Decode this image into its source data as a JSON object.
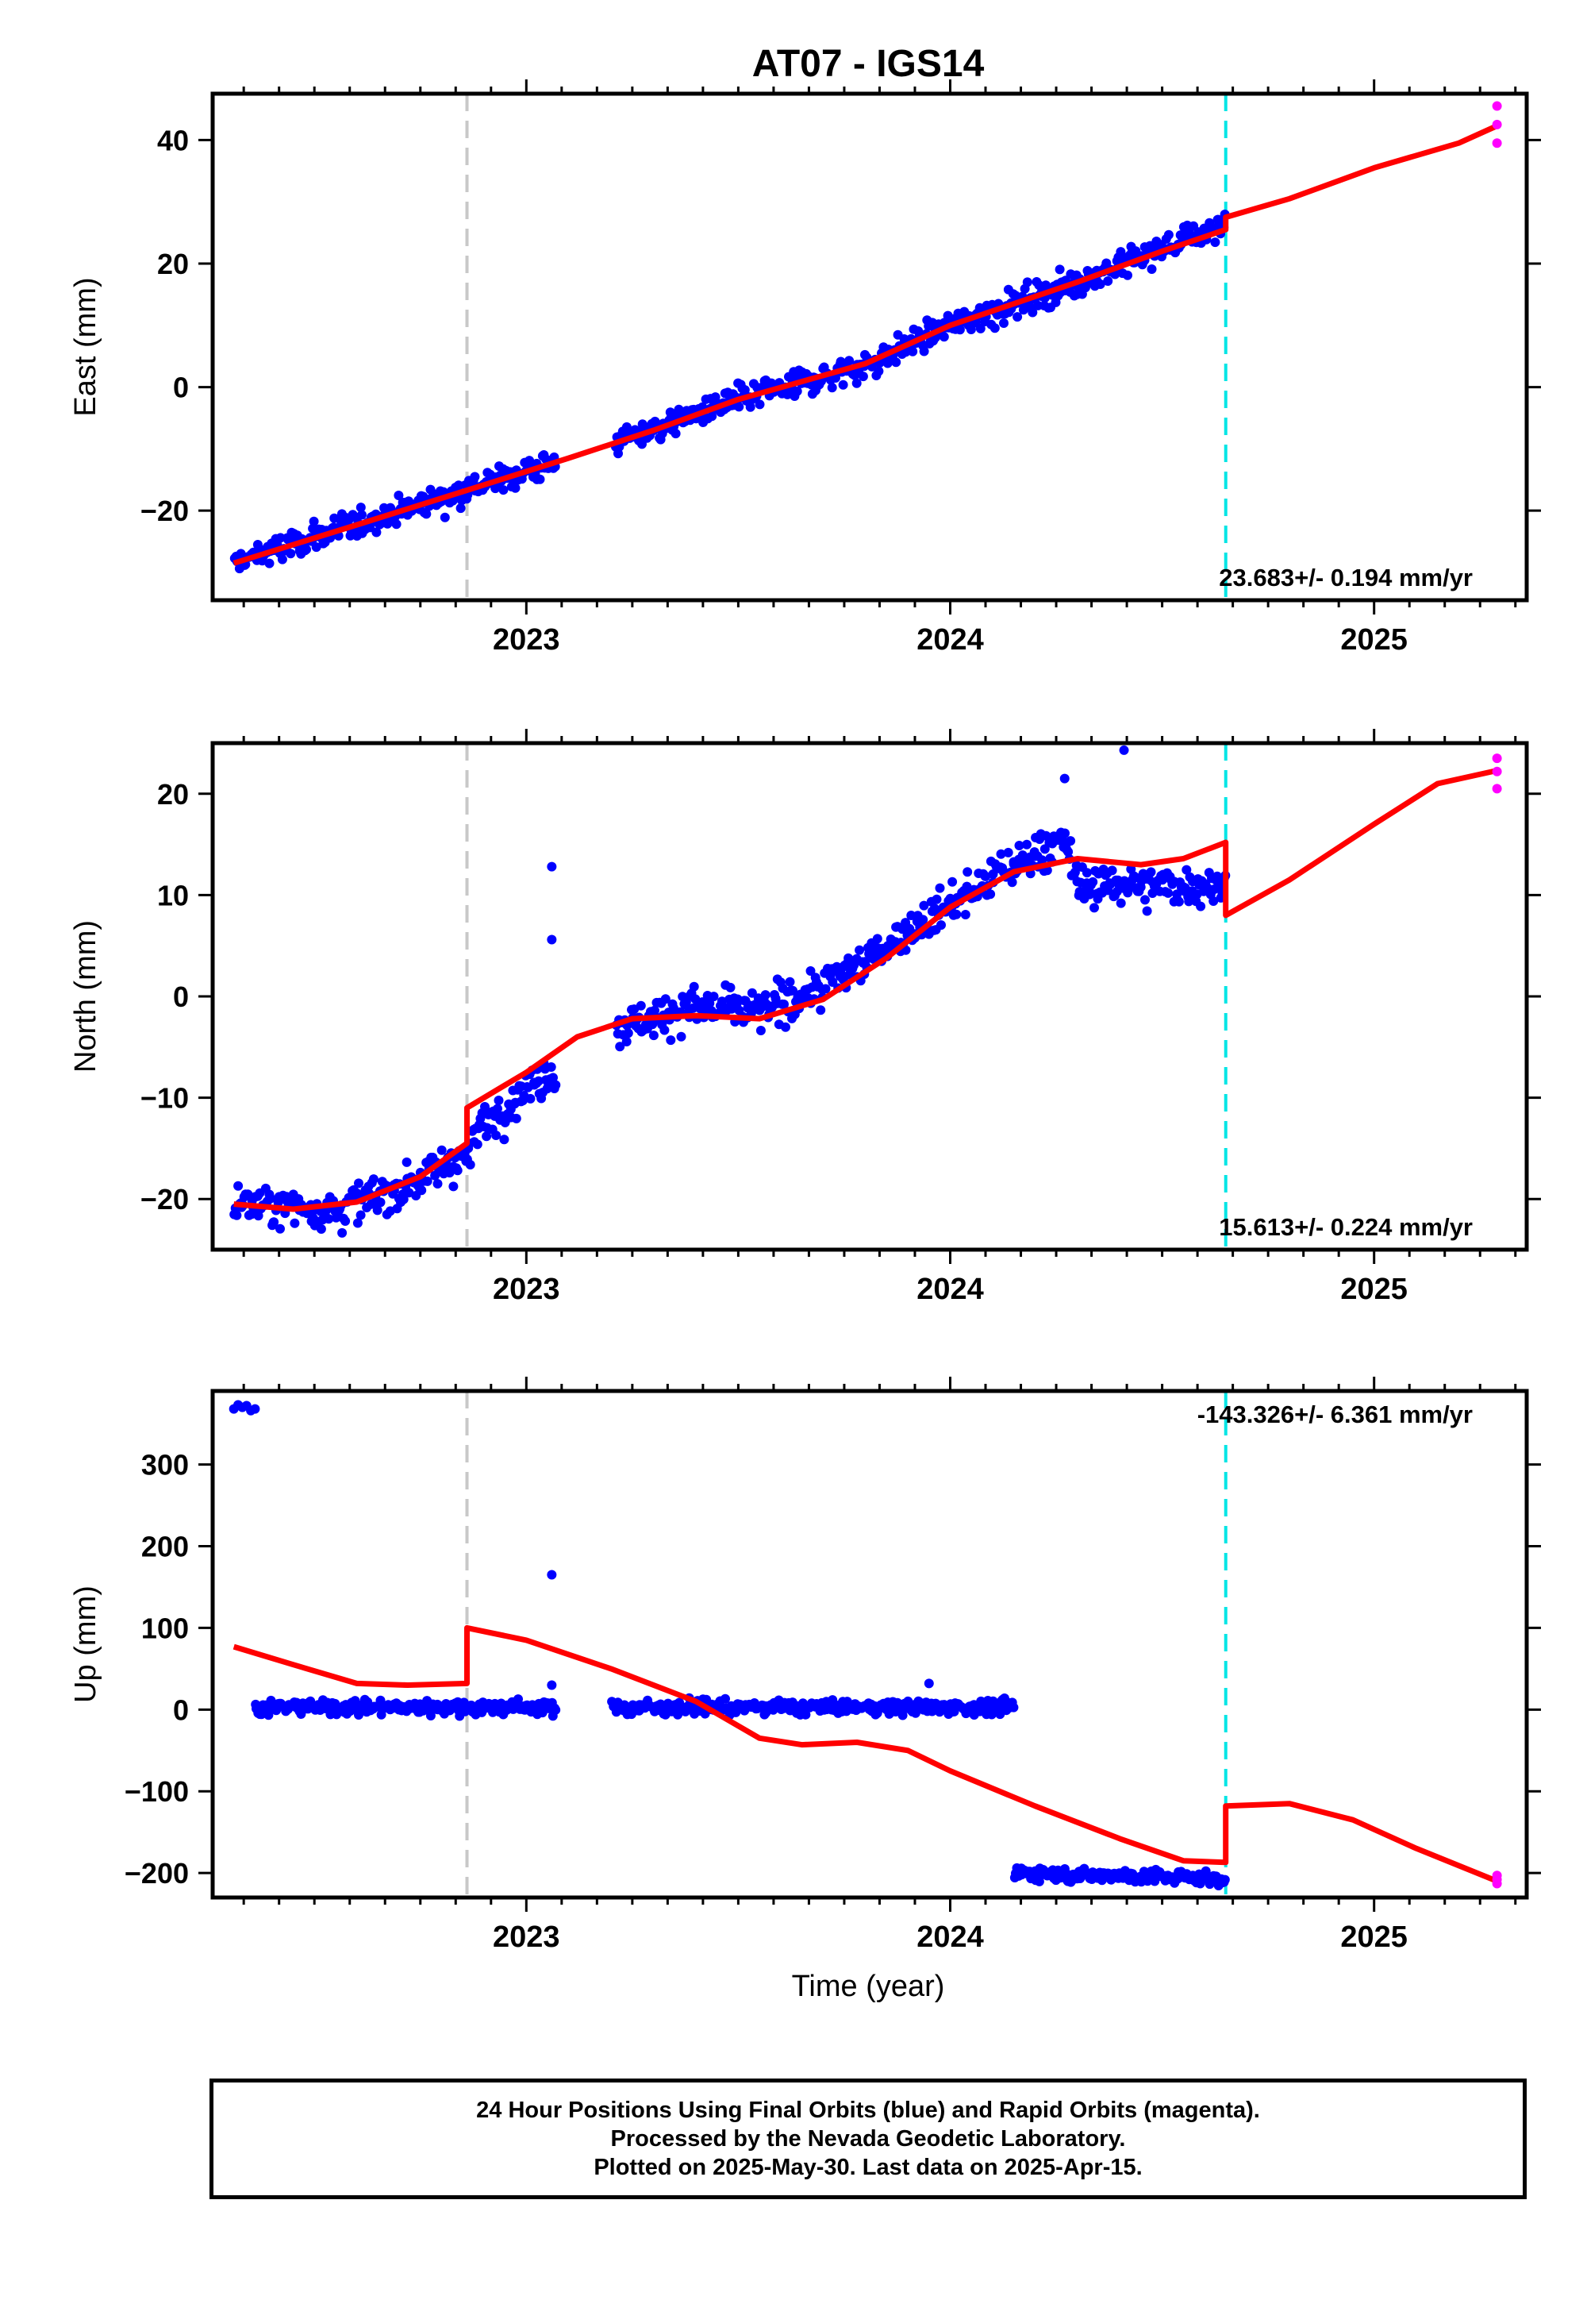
{
  "title": "AT07 - IGS14",
  "xlabel": "Time (year)",
  "caption": {
    "line1": "24 Hour Positions Using Final Orbits (blue) and Rapid Orbits (magenta).",
    "line2": "Processed by the Nevada Geodetic Laboratory.",
    "line3": "Plotted on 2025-May-30. Last data on 2025-Apr-15."
  },
  "colors": {
    "final_orbits": "#0000ff",
    "rapid_orbits": "#ff00ff",
    "model": "#ff0000",
    "event_gray": "#c8c8c8",
    "event_cyan": "#00e5e5"
  },
  "chart_data": [
    {
      "type": "scatter",
      "panel": "east",
      "ylabel": "East (mm)",
      "xlim": [
        2022.26,
        2025.36
      ],
      "ylim": [
        -34.5,
        47.5
      ],
      "yticks": [
        -20,
        0,
        20,
        40
      ],
      "xticks": [
        2023,
        2024,
        2025
      ],
      "rate_label": "23.683+/- 0.194 mm/yr",
      "rate_position": "bottom-right",
      "events": [
        {
          "x": 2022.86,
          "color": "gray"
        },
        {
          "x": 2024.65,
          "color": "cyan"
        }
      ],
      "final_segments": [
        [
          2022.31,
          2023.07
        ],
        [
          2023.21,
          2024.65
        ]
      ],
      "final_trend": [
        [
          2022.31,
          -28.5
        ],
        [
          2022.86,
          -16.5
        ],
        [
          2023.1,
          -11.5
        ],
        [
          2023.5,
          -2.0
        ],
        [
          2023.8,
          3.5
        ],
        [
          2024.0,
          10.0
        ],
        [
          2024.3,
          17.0
        ],
        [
          2024.65,
          26.5
        ]
      ],
      "final_scatter_mm": 1.6,
      "rapid_points": [
        [
          2025.29,
          45.5
        ],
        [
          2025.29,
          42.5
        ],
        [
          2025.29,
          39.5
        ]
      ],
      "model_line": [
        [
          2022.31,
          -28.5
        ],
        [
          2022.6,
          -22.3
        ],
        [
          2022.86,
          -16.7
        ],
        [
          2023.1,
          -11.5
        ],
        [
          2023.3,
          -7.0
        ],
        [
          2023.5,
          -2.0
        ],
        [
          2023.8,
          3.8
        ],
        [
          2024.0,
          10.0
        ],
        [
          2024.3,
          17.0
        ],
        [
          2024.5,
          22.0
        ],
        [
          2024.65,
          25.5
        ],
        [
          2024.65,
          27.5
        ],
        [
          2024.8,
          30.5
        ],
        [
          2025.0,
          35.5
        ],
        [
          2025.2,
          39.5
        ],
        [
          2025.29,
          42.3
        ]
      ]
    },
    {
      "type": "scatter",
      "panel": "north",
      "ylabel": "North (mm)",
      "xlim": [
        2022.26,
        2025.36
      ],
      "ylim": [
        -25,
        25
      ],
      "yticks": [
        -20,
        -10,
        0,
        10,
        20
      ],
      "xticks": [
        2023,
        2024,
        2025
      ],
      "rate_label": "15.613+/- 0.224 mm/yr",
      "rate_position": "bottom-right",
      "events": [
        {
          "x": 2022.86,
          "color": "gray"
        },
        {
          "x": 2024.65,
          "color": "cyan"
        }
      ],
      "final_segments": [
        [
          2022.31,
          2023.07
        ],
        [
          2023.21,
          2024.65
        ]
      ],
      "final_trend": [
        [
          2022.31,
          -20.5
        ],
        [
          2022.55,
          -21.0
        ],
        [
          2022.7,
          -19.0
        ],
        [
          2022.86,
          -15.5
        ],
        [
          2022.9,
          -12.5
        ],
        [
          2023.07,
          -7.0
        ],
        [
          2023.21,
          -3.0
        ],
        [
          2023.4,
          -1.0
        ],
        [
          2023.55,
          -1.5
        ],
        [
          2023.7,
          1.0
        ],
        [
          2023.85,
          5.0
        ],
        [
          2024.0,
          9.0
        ],
        [
          2024.15,
          13.0
        ],
        [
          2024.27,
          15.5
        ],
        [
          2024.3,
          11.0
        ],
        [
          2024.65,
          11.0
        ]
      ],
      "final_scatter_mm": 1.4,
      "outliers": [
        [
          2023.06,
          12.8
        ],
        [
          2023.06,
          5.6
        ],
        [
          2024.41,
          24.3
        ],
        [
          2024.27,
          21.5
        ]
      ],
      "rapid_points": [
        [
          2025.29,
          23.5
        ],
        [
          2025.29,
          22.2
        ],
        [
          2025.29,
          20.5
        ]
      ],
      "model_line": [
        [
          2022.31,
          -20.5
        ],
        [
          2022.45,
          -21.0
        ],
        [
          2022.6,
          -20.3
        ],
        [
          2022.75,
          -17.8
        ],
        [
          2022.86,
          -14.5
        ],
        [
          2022.86,
          -11.0
        ],
        [
          2023.0,
          -7.5
        ],
        [
          2023.12,
          -4.0
        ],
        [
          2023.25,
          -2.2
        ],
        [
          2023.4,
          -1.9
        ],
        [
          2023.55,
          -2.2
        ],
        [
          2023.7,
          -0.3
        ],
        [
          2023.85,
          3.8
        ],
        [
          2024.0,
          8.8
        ],
        [
          2024.15,
          12.3
        ],
        [
          2024.3,
          13.6
        ],
        [
          2024.45,
          13.0
        ],
        [
          2024.55,
          13.6
        ],
        [
          2024.65,
          15.2
        ],
        [
          2024.65,
          8.0
        ],
        [
          2024.8,
          11.5
        ],
        [
          2025.0,
          17.0
        ],
        [
          2025.15,
          21.0
        ],
        [
          2025.29,
          22.3
        ]
      ]
    },
    {
      "type": "scatter",
      "panel": "up",
      "ylabel": "Up (mm)",
      "xlim": [
        2022.26,
        2025.36
      ],
      "ylim": [
        -230,
        390
      ],
      "yticks": [
        -200,
        -100,
        0,
        100,
        200,
        300
      ],
      "xticks": [
        2023,
        2024,
        2025
      ],
      "rate_label": "-143.326+/- 6.361 mm/yr",
      "rate_position": "top-right",
      "events": [
        {
          "x": 2022.86,
          "color": "gray"
        },
        {
          "x": 2024.65,
          "color": "cyan"
        }
      ],
      "final_segments": [
        [
          2022.36,
          2023.07
        ],
        [
          2023.2,
          2024.15
        ],
        [
          2024.15,
          2024.65
        ]
      ],
      "final_trend": [
        [
          2022.36,
          3.0
        ],
        [
          2023.07,
          3.0
        ],
        [
          2023.2,
          3.0
        ],
        [
          2024.15,
          3.0
        ],
        [
          2024.15,
          -200.0
        ],
        [
          2024.65,
          -207.0
        ]
      ],
      "final_scatter_mm": 6,
      "outliers": [
        [
          2022.32,
          373
        ],
        [
          2022.33,
          370
        ],
        [
          2022.34,
          372
        ],
        [
          2022.35,
          366
        ],
        [
          2022.36,
          368
        ],
        [
          2022.31,
          368
        ],
        [
          2023.06,
          165
        ],
        [
          2023.06,
          30
        ],
        [
          2023.95,
          32
        ]
      ],
      "rapid_points": [
        [
          2025.29,
          -203
        ],
        [
          2025.29,
          -208
        ],
        [
          2025.29,
          -213
        ]
      ],
      "model_line": [
        [
          2022.31,
          77
        ],
        [
          2022.45,
          55
        ],
        [
          2022.6,
          32
        ],
        [
          2022.72,
          30
        ],
        [
          2022.86,
          32
        ],
        [
          2022.86,
          100
        ],
        [
          2023.0,
          85
        ],
        [
          2023.2,
          50
        ],
        [
          2023.4,
          10
        ],
        [
          2023.55,
          -35
        ],
        [
          2023.65,
          -43
        ],
        [
          2023.78,
          -40
        ],
        [
          2023.9,
          -50
        ],
        [
          2024.0,
          -75
        ],
        [
          2024.2,
          -118
        ],
        [
          2024.4,
          -158
        ],
        [
          2024.55,
          -185
        ],
        [
          2024.65,
          -187
        ],
        [
          2024.65,
          -118
        ],
        [
          2024.8,
          -115
        ],
        [
          2024.95,
          -135
        ],
        [
          2025.1,
          -170
        ],
        [
          2025.29,
          -210
        ]
      ]
    }
  ]
}
